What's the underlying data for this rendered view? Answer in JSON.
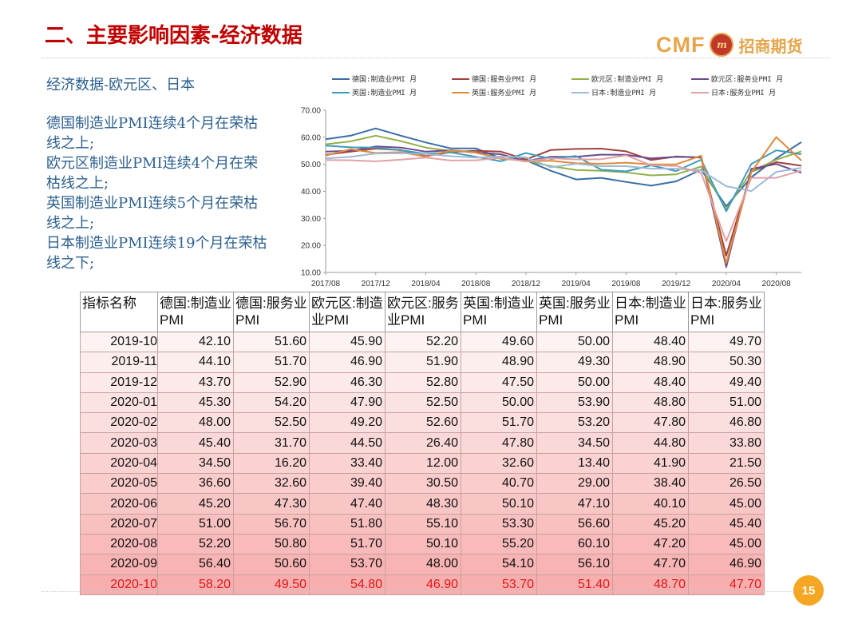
{
  "header": {
    "title": "二、主要影响因素-经济数据",
    "logo_text": "CMF",
    "logo_mark": "m",
    "logo_cn": "招商期货"
  },
  "subtitle": "经济数据-欧元区、日本",
  "notes": [
    "德国制造业PMI连续4个月在荣枯线之上;",
    "欧元区制造业PMI连续4个月在荣枯线之上;",
    "英国制造业PMI连续5个月在荣枯线之上;",
    "日本制造业PMI连续19个月在荣枯线之下;"
  ],
  "page_number": "15",
  "chart_data": {
    "type": "line",
    "title": "",
    "xlabel": "",
    "ylabel": "",
    "ylim": [
      10,
      70
    ],
    "yticks": [
      "70.00",
      "60.00",
      "50.00",
      "40.00",
      "30.00",
      "20.00",
      "10.00"
    ],
    "x": [
      "2017/08",
      "2017/10",
      "2017/12",
      "2018/02",
      "2018/04",
      "2018/06",
      "2018/08",
      "2018/10",
      "2018/12",
      "2019/02",
      "2019/04",
      "2019/06",
      "2019/08",
      "2019/10",
      "2019/12",
      "2020/02",
      "2020/04",
      "2020/06",
      "2020/08",
      "2020/10"
    ],
    "xticks": [
      "2017/08",
      "2017/12",
      "2018/04",
      "2018/08",
      "2018/12",
      "2019/04",
      "2019/08",
      "2019/12",
      "2020/04",
      "2020/08"
    ],
    "legend": "top",
    "series": [
      {
        "name": "德国:制造业PMI 月",
        "color": "#3a6ea5",
        "values": [
          59.3,
          60.6,
          63.3,
          60.6,
          58.1,
          55.9,
          55.9,
          52.2,
          51.5,
          47.6,
          44.4,
          45.0,
          43.5,
          42.1,
          43.7,
          48.0,
          34.5,
          45.2,
          52.2,
          58.2
        ]
      },
      {
        "name": "德国:服务业PMI 月",
        "color": "#a0413d",
        "values": [
          53.5,
          54.7,
          55.8,
          55.3,
          53.0,
          54.5,
          55.0,
          54.7,
          51.8,
          55.3,
          55.7,
          55.8,
          54.8,
          51.6,
          52.9,
          52.5,
          16.2,
          47.3,
          50.8,
          49.5
        ]
      },
      {
        "name": "欧元区:制造业PMI 月",
        "color": "#92b04a",
        "values": [
          57.4,
          58.5,
          60.6,
          58.6,
          56.2,
          54.9,
          54.6,
          52.0,
          51.4,
          49.3,
          47.9,
          47.6,
          47.0,
          45.9,
          46.3,
          49.2,
          33.4,
          47.4,
          51.7,
          54.8
        ]
      },
      {
        "name": "欧元区:服务业PMI 月",
        "color": "#6a4b8f",
        "values": [
          54.7,
          55.0,
          56.6,
          56.2,
          54.7,
          55.2,
          54.4,
          53.7,
          51.2,
          52.8,
          52.8,
          53.6,
          53.5,
          52.2,
          52.8,
          52.6,
          12.0,
          48.3,
          50.1,
          46.9
        ]
      },
      {
        "name": "英国:制造业PMI 月",
        "color": "#3e9bbb",
        "values": [
          56.9,
          56.3,
          56.2,
          55.2,
          53.9,
          54.4,
          52.8,
          51.1,
          54.2,
          52.0,
          53.1,
          48.0,
          47.4,
          49.6,
          47.5,
          51.7,
          32.6,
          50.1,
          55.2,
          53.7
        ]
      },
      {
        "name": "英国:服务业PMI 月",
        "color": "#e08a3c",
        "values": [
          53.2,
          55.6,
          54.2,
          54.5,
          52.8,
          55.1,
          54.3,
          52.2,
          51.2,
          51.3,
          50.4,
          50.2,
          50.6,
          50.0,
          50.0,
          53.2,
          13.4,
          47.1,
          60.1,
          51.4
        ]
      },
      {
        "name": "日本:制造业PMI 月",
        "color": "#9dbad8",
        "values": [
          52.2,
          52.8,
          54.0,
          54.1,
          53.8,
          53.0,
          52.5,
          52.9,
          52.6,
          48.9,
          50.2,
          49.3,
          49.3,
          48.4,
          48.4,
          47.8,
          41.9,
          40.1,
          47.2,
          48.7
        ]
      },
      {
        "name": "日本:服务业PMI 月",
        "color": "#e0a1a6",
        "values": [
          51.6,
          51.5,
          51.1,
          51.7,
          52.5,
          51.4,
          51.5,
          52.4,
          51.0,
          52.3,
          51.8,
          51.9,
          53.3,
          49.7,
          49.4,
          46.8,
          21.5,
          45.0,
          45.0,
          47.7
        ]
      }
    ]
  },
  "table": {
    "headers": [
      "指标名称",
      "德国:制造业PMI",
      "德国:服务业PMI",
      "欧元区:制造业PMI",
      "欧元区:服务业PMI",
      "英国:制造业PMI",
      "英国:服务业PMI",
      "日本:制造业PMI",
      "日本:服务业PMI"
    ],
    "rows": [
      [
        "2019-10",
        "42.10",
        "51.60",
        "45.90",
        "52.20",
        "49.60",
        "50.00",
        "48.40",
        "49.70"
      ],
      [
        "2019-11",
        "44.10",
        "51.70",
        "46.90",
        "51.90",
        "48.90",
        "49.30",
        "48.90",
        "50.30"
      ],
      [
        "2019-12",
        "43.70",
        "52.90",
        "46.30",
        "52.80",
        "47.50",
        "50.00",
        "48.40",
        "49.40"
      ],
      [
        "2020-01",
        "45.30",
        "54.20",
        "47.90",
        "52.50",
        "50.00",
        "53.90",
        "48.80",
        "51.00"
      ],
      [
        "2020-02",
        "48.00",
        "52.50",
        "49.20",
        "52.60",
        "51.70",
        "53.20",
        "47.80",
        "46.80"
      ],
      [
        "2020-03",
        "45.40",
        "31.70",
        "44.50",
        "26.40",
        "47.80",
        "34.50",
        "44.80",
        "33.80"
      ],
      [
        "2020-04",
        "34.50",
        "16.20",
        "33.40",
        "12.00",
        "32.60",
        "13.40",
        "41.90",
        "21.50"
      ],
      [
        "2020-05",
        "36.60",
        "32.60",
        "39.40",
        "30.50",
        "40.70",
        "29.00",
        "38.40",
        "26.50"
      ],
      [
        "2020-06",
        "45.20",
        "47.30",
        "47.40",
        "48.30",
        "50.10",
        "47.10",
        "40.10",
        "45.00"
      ],
      [
        "2020-07",
        "51.00",
        "56.70",
        "51.80",
        "55.10",
        "53.30",
        "56.60",
        "45.20",
        "45.40"
      ],
      [
        "2020-08",
        "52.20",
        "50.80",
        "51.70",
        "50.10",
        "55.20",
        "60.10",
        "47.20",
        "45.00"
      ],
      [
        "2020-09",
        "56.40",
        "50.60",
        "53.70",
        "48.00",
        "54.10",
        "56.10",
        "47.70",
        "46.90"
      ],
      [
        "2020-10",
        "58.20",
        "49.50",
        "54.80",
        "46.90",
        "53.70",
        "51.40",
        "48.70",
        "47.70"
      ]
    ]
  }
}
